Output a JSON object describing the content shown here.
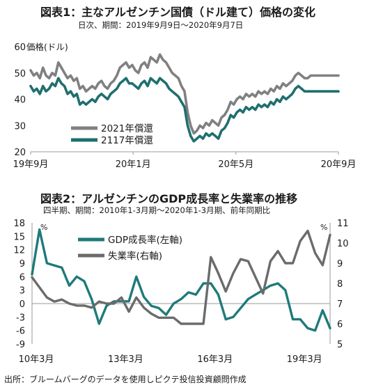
{
  "chart1": {
    "title": "図表1：主なアルゼンチン国債（ドル建て）価格の変化",
    "subtitle": "日次、期間：2019年9月9日～2020年9月7日",
    "unit_label": "価格(ドル)"
  },
  "chart2": {
    "title": "図表2：アルゼンチンのGDP成長率と失業率の推移",
    "subtitle": "四半期、期間：2010年1-3月期～2020年1-3月期、前年同期比",
    "left_unit": "%",
    "right_unit": "%"
  },
  "source": "出所：ブルームバーグのデータを使用しピクテ投信投資顧問作成",
  "chart_data": [
    {
      "type": "line",
      "title": "図表1：主なアルゼンチン国債（ドル建て）価格の変化",
      "subtitle": "日次、期間：2019年9月9日～2020年9月7日",
      "ylabel": "価格(ドル)",
      "ylim": [
        20,
        60
      ],
      "yticks": [
        20,
        30,
        40,
        50,
        60
      ],
      "xlim": [
        0,
        100
      ],
      "xtick_positions": [
        0,
        33.3,
        66.7,
        100
      ],
      "xtick_labels": [
        "19年9月",
        "20年1月",
        "20年5月",
        "20年9月"
      ],
      "legend_position": "bottom-left",
      "grid": false,
      "series": [
        {
          "name": "2021年償還",
          "color": "#808080",
          "x": [
            0,
            1,
            2,
            3,
            4,
            5,
            6,
            7,
            8,
            9,
            10,
            11,
            12,
            13,
            14,
            15,
            16,
            17,
            18,
            19,
            20,
            21,
            22,
            23,
            24,
            25,
            26,
            27,
            28,
            29,
            30,
            31,
            32,
            33,
            34,
            35,
            36,
            37,
            38,
            39,
            40,
            41,
            42,
            43,
            44,
            45,
            46,
            47,
            48,
            49,
            50,
            51,
            52,
            53,
            54,
            55,
            56,
            57,
            58,
            59,
            60,
            61,
            62,
            63,
            64,
            65,
            66,
            67,
            68,
            69,
            70,
            71,
            72,
            73,
            74,
            75,
            76,
            77,
            78,
            79,
            80,
            81,
            82,
            83,
            84,
            85,
            86,
            87,
            88,
            89,
            90,
            91,
            92,
            93,
            94,
            95,
            96,
            97,
            98,
            99,
            100
          ],
          "y": [
            51,
            49,
            50,
            48,
            52,
            49,
            48,
            50,
            49,
            54,
            52,
            50,
            48,
            49,
            47,
            48,
            44,
            45,
            43,
            44,
            45,
            44,
            46,
            47,
            45,
            44,
            46,
            47,
            49,
            52,
            53,
            54,
            52,
            53,
            51,
            50,
            53,
            54,
            52,
            56,
            55,
            54,
            57,
            55,
            54,
            52,
            50,
            49,
            48,
            45,
            43,
            35,
            30,
            27,
            28,
            30,
            29,
            31,
            30,
            32,
            31,
            30,
            33,
            34,
            36,
            39,
            38,
            40,
            41,
            40,
            42,
            41,
            42,
            41,
            43,
            42,
            43,
            42,
            44,
            43,
            45,
            44,
            46,
            45,
            46,
            47,
            49,
            50,
            49,
            48,
            48,
            49,
            49,
            49,
            49,
            49,
            49,
            49,
            49,
            49,
            49
          ]
        },
        {
          "name": "2117年償還",
          "color": "#1f6f6f",
          "x": [
            0,
            1,
            2,
            3,
            4,
            5,
            6,
            7,
            8,
            9,
            10,
            11,
            12,
            13,
            14,
            15,
            16,
            17,
            18,
            19,
            20,
            21,
            22,
            23,
            24,
            25,
            26,
            27,
            28,
            29,
            30,
            31,
            32,
            33,
            34,
            35,
            36,
            37,
            38,
            39,
            40,
            41,
            42,
            43,
            44,
            45,
            46,
            47,
            48,
            49,
            50,
            51,
            52,
            53,
            54,
            55,
            56,
            57,
            58,
            59,
            60,
            61,
            62,
            63,
            64,
            65,
            66,
            67,
            68,
            69,
            70,
            71,
            72,
            73,
            74,
            75,
            76,
            77,
            78,
            79,
            80,
            81,
            82,
            83,
            84,
            85,
            86,
            87,
            88,
            89,
            90,
            91,
            92,
            93,
            94,
            95,
            96,
            97,
            98,
            99,
            100
          ],
          "y": [
            45,
            43,
            44,
            42,
            45,
            43,
            44,
            46,
            45,
            48,
            46,
            45,
            42,
            43,
            41,
            42,
            38,
            39,
            38,
            39,
            40,
            39,
            41,
            42,
            41,
            40,
            42,
            43,
            44,
            46,
            47,
            48,
            46,
            46,
            45,
            44,
            46,
            47,
            45,
            48,
            47,
            46,
            48,
            47,
            46,
            44,
            43,
            42,
            41,
            39,
            37,
            30,
            26,
            24,
            25,
            26,
            25,
            27,
            26,
            27,
            26,
            25,
            28,
            29,
            31,
            34,
            33,
            35,
            36,
            35,
            37,
            36,
            37,
            36,
            38,
            37,
            38,
            37,
            39,
            38,
            40,
            39,
            41,
            40,
            41,
            42,
            44,
            45,
            44,
            43,
            43,
            43,
            43,
            43,
            43,
            43,
            43,
            43,
            43,
            43,
            43
          ]
        }
      ]
    },
    {
      "type": "line",
      "title": "図表2：アルゼンチンのGDP成長率と失業率の推移",
      "subtitle": "四半期、期間：2010年1-3月期～2020年1-3月期、前年同期比",
      "x_categories_count": 41,
      "xtick_positions": [
        0,
        12,
        24,
        36
      ],
      "xtick_labels": [
        "10年3月",
        "13年3月",
        "16年3月",
        "19年3月"
      ],
      "ylim_left": [
        -9,
        18
      ],
      "yticks_left": [
        -9,
        -6,
        -3,
        0,
        3,
        6,
        9,
        12,
        15,
        18
      ],
      "ylim_right": [
        5,
        11
      ],
      "yticks_right": [
        5,
        6,
        7,
        8,
        9,
        10,
        11
      ],
      "legend_position": "top-left",
      "grid": false,
      "series": [
        {
          "name": "GDP成長率(左軸)",
          "axis": "left",
          "color": "#1f7a7a",
          "values": [
            6.5,
            16.5,
            9.0,
            8.5,
            8.0,
            4.0,
            6.0,
            5.0,
            1.0,
            -4.5,
            -0.5,
            0.5,
            0.5,
            0.5,
            6.0,
            1.5,
            -0.5,
            -1.0,
            -2.5,
            0.0,
            1.0,
            2.5,
            2.0,
            4.5,
            4.5,
            2.0,
            -3.5,
            -3.0,
            -1.0,
            1.0,
            2.0,
            3.0,
            4.0,
            4.5,
            3.0,
            -3.5,
            -3.5,
            -5.5,
            -6.0,
            -1.5,
            -5.5
          ]
        },
        {
          "name": "失業率(右軸)",
          "axis": "right",
          "color": "#6b6b6b",
          "values": [
            8.3,
            7.8,
            7.3,
            7.1,
            7.2,
            7.0,
            6.9,
            6.9,
            6.8,
            7.1,
            7.0,
            7.0,
            7.3,
            6.6,
            7.3,
            6.8,
            6.5,
            6.3,
            6.3,
            6.3,
            6.0,
            6.0,
            6.0,
            6.0,
            9.3,
            8.5,
            7.6,
            8.5,
            9.2,
            9.1,
            8.3,
            7.5,
            9.1,
            9.6,
            9.0,
            9.0,
            10.1,
            10.6,
            9.5,
            8.9,
            10.4
          ]
        }
      ]
    }
  ]
}
